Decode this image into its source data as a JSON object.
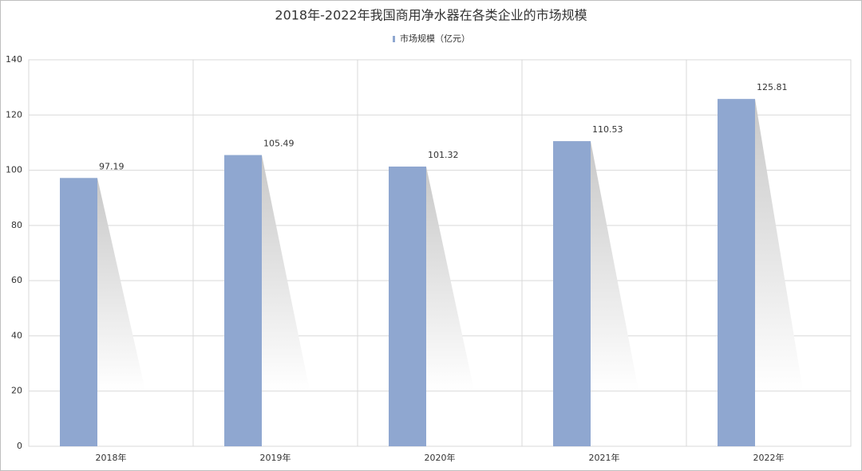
{
  "chart_data": {
    "type": "bar",
    "title": "2018年-2022年我国商用净水器在各类企业的市场规模",
    "legend": "市场规模（亿元）",
    "categories": [
      "2018年",
      "2019年",
      "2020年",
      "2021年",
      "2022年"
    ],
    "values": [
      97.19,
      105.49,
      101.32,
      110.53,
      125.81
    ],
    "color": "#8fa7d0",
    "ylim": [
      0,
      140
    ],
    "yticks": [
      0,
      20,
      40,
      60,
      80,
      100,
      120,
      140
    ],
    "grid": true
  }
}
